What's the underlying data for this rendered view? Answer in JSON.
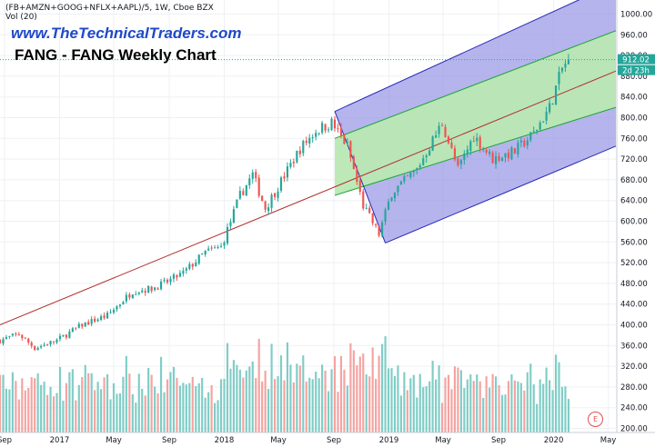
{
  "header": {
    "symbol_line": "(FB+AMZN+GOOG+NFLX+AAPL)/5, 1W, Cboe BZX",
    "volume_line": "Vol (20)",
    "watermark": "www.TheTechnicalTraders.com",
    "title": "FANG - FANG Weekly Chart"
  },
  "earnings_badge": "E",
  "colors": {
    "up": "#26a69a",
    "down": "#ef5350",
    "vol_up": "#7fcdc6",
    "vol_down": "#f4a3a1",
    "pitchfork_outer": "#2727b8",
    "pitchfork_outer_fill": "#9c9be6",
    "pitchfork_inner": "#1fa43a",
    "pitchfork_inner_fill": "#b9e8b4",
    "median": "#b22d2d",
    "price_badge": "#26a69a"
  },
  "chart_data": {
    "type": "candlestick",
    "y_axis": {
      "ticks": [
        200,
        240,
        280,
        320,
        360,
        400,
        440,
        480,
        520,
        560,
        600,
        640,
        680,
        720,
        760,
        800,
        840,
        880,
        920,
        960,
        1000
      ],
      "tick_labels": [
        "200.00",
        "240.00",
        "280.00",
        "320.00",
        "360.00",
        "400.00",
        "440.00",
        "480.00",
        "520.00",
        "560.00",
        "600.00",
        "640.00",
        "680.00",
        "720.00",
        "760.00",
        "800.00",
        "840.00",
        "880.00",
        "920.00",
        "960.00",
        "1000.00"
      ],
      "range": [
        200,
        1030
      ]
    },
    "x_axis": {
      "range": [
        "2016-08-22",
        "2020-05-18"
      ],
      "ticks": [
        {
          "date": "2016-09-01",
          "label": "Sep"
        },
        {
          "date": "2017-01-01",
          "label": "2017"
        },
        {
          "date": "2017-05-01",
          "label": "May"
        },
        {
          "date": "2017-09-01",
          "label": "Sep"
        },
        {
          "date": "2018-01-01",
          "label": "2018"
        },
        {
          "date": "2018-05-01",
          "label": "May"
        },
        {
          "date": "2018-09-01",
          "label": "Sep"
        },
        {
          "date": "2019-01-01",
          "label": "2019"
        },
        {
          "date": "2019-05-01",
          "label": "May"
        },
        {
          "date": "2019-09-01",
          "label": "Sep"
        },
        {
          "date": "2020-01-01",
          "label": "2020"
        },
        {
          "date": "2020-05-01",
          "label": "May"
        }
      ]
    },
    "last_price": {
      "value": 912.02,
      "label": "912.02",
      "countdown": "2d 23h"
    },
    "price_keypoints": [
      [
        "2016-08-22",
        370
      ],
      [
        "2016-10-03",
        382
      ],
      [
        "2016-11-07",
        355
      ],
      [
        "2016-12-26",
        370
      ],
      [
        "2017-02-20",
        400
      ],
      [
        "2017-04-17",
        418
      ],
      [
        "2017-06-12",
        465
      ],
      [
        "2017-07-24",
        470
      ],
      [
        "2017-08-21",
        480
      ],
      [
        "2017-10-02",
        500
      ],
      [
        "2017-11-20",
        540
      ],
      [
        "2017-12-25",
        550
      ],
      [
        "2018-02-05",
        650
      ],
      [
        "2018-03-05",
        690
      ],
      [
        "2018-04-02",
        625
      ],
      [
        "2018-06-18",
        740
      ],
      [
        "2018-07-23",
        775
      ],
      [
        "2018-08-27",
        790
      ],
      [
        "2018-10-01",
        745
      ],
      [
        "2018-11-05",
        630
      ],
      [
        "2018-12-10",
        575
      ],
      [
        "2019-01-07",
        655
      ],
      [
        "2019-03-04",
        700
      ],
      [
        "2019-04-29",
        790
      ],
      [
        "2019-06-03",
        700
      ],
      [
        "2019-07-08",
        765
      ],
      [
        "2019-08-19",
        720
      ],
      [
        "2019-10-07",
        735
      ],
      [
        "2019-11-18",
        770
      ],
      [
        "2019-12-23",
        820
      ],
      [
        "2020-01-20",
        895
      ],
      [
        "2020-02-03",
        912
      ]
    ],
    "pitchfork": {
      "median_line": [
        [
          "2016-08-22",
          400
        ],
        [
          "2020-05-18",
          890
        ]
      ],
      "outer_upper": [
        [
          "2018-09-03",
          812
        ],
        [
          "2020-05-18",
          1060
        ]
      ],
      "outer_lower": [
        [
          "2018-12-24",
          558
        ],
        [
          "2020-05-18",
          745
        ]
      ],
      "inner_upper": [
        [
          "2018-09-03",
          760
        ],
        [
          "2020-05-18",
          968
        ]
      ],
      "inner_lower": [
        [
          "2018-09-03",
          650
        ],
        [
          "2020-05-18",
          820
        ]
      ]
    },
    "volume": {
      "label": "Vol (20)",
      "range": [
        0,
        100
      ],
      "values_relative": "bar heights estimated as percent of volume pane"
    }
  }
}
